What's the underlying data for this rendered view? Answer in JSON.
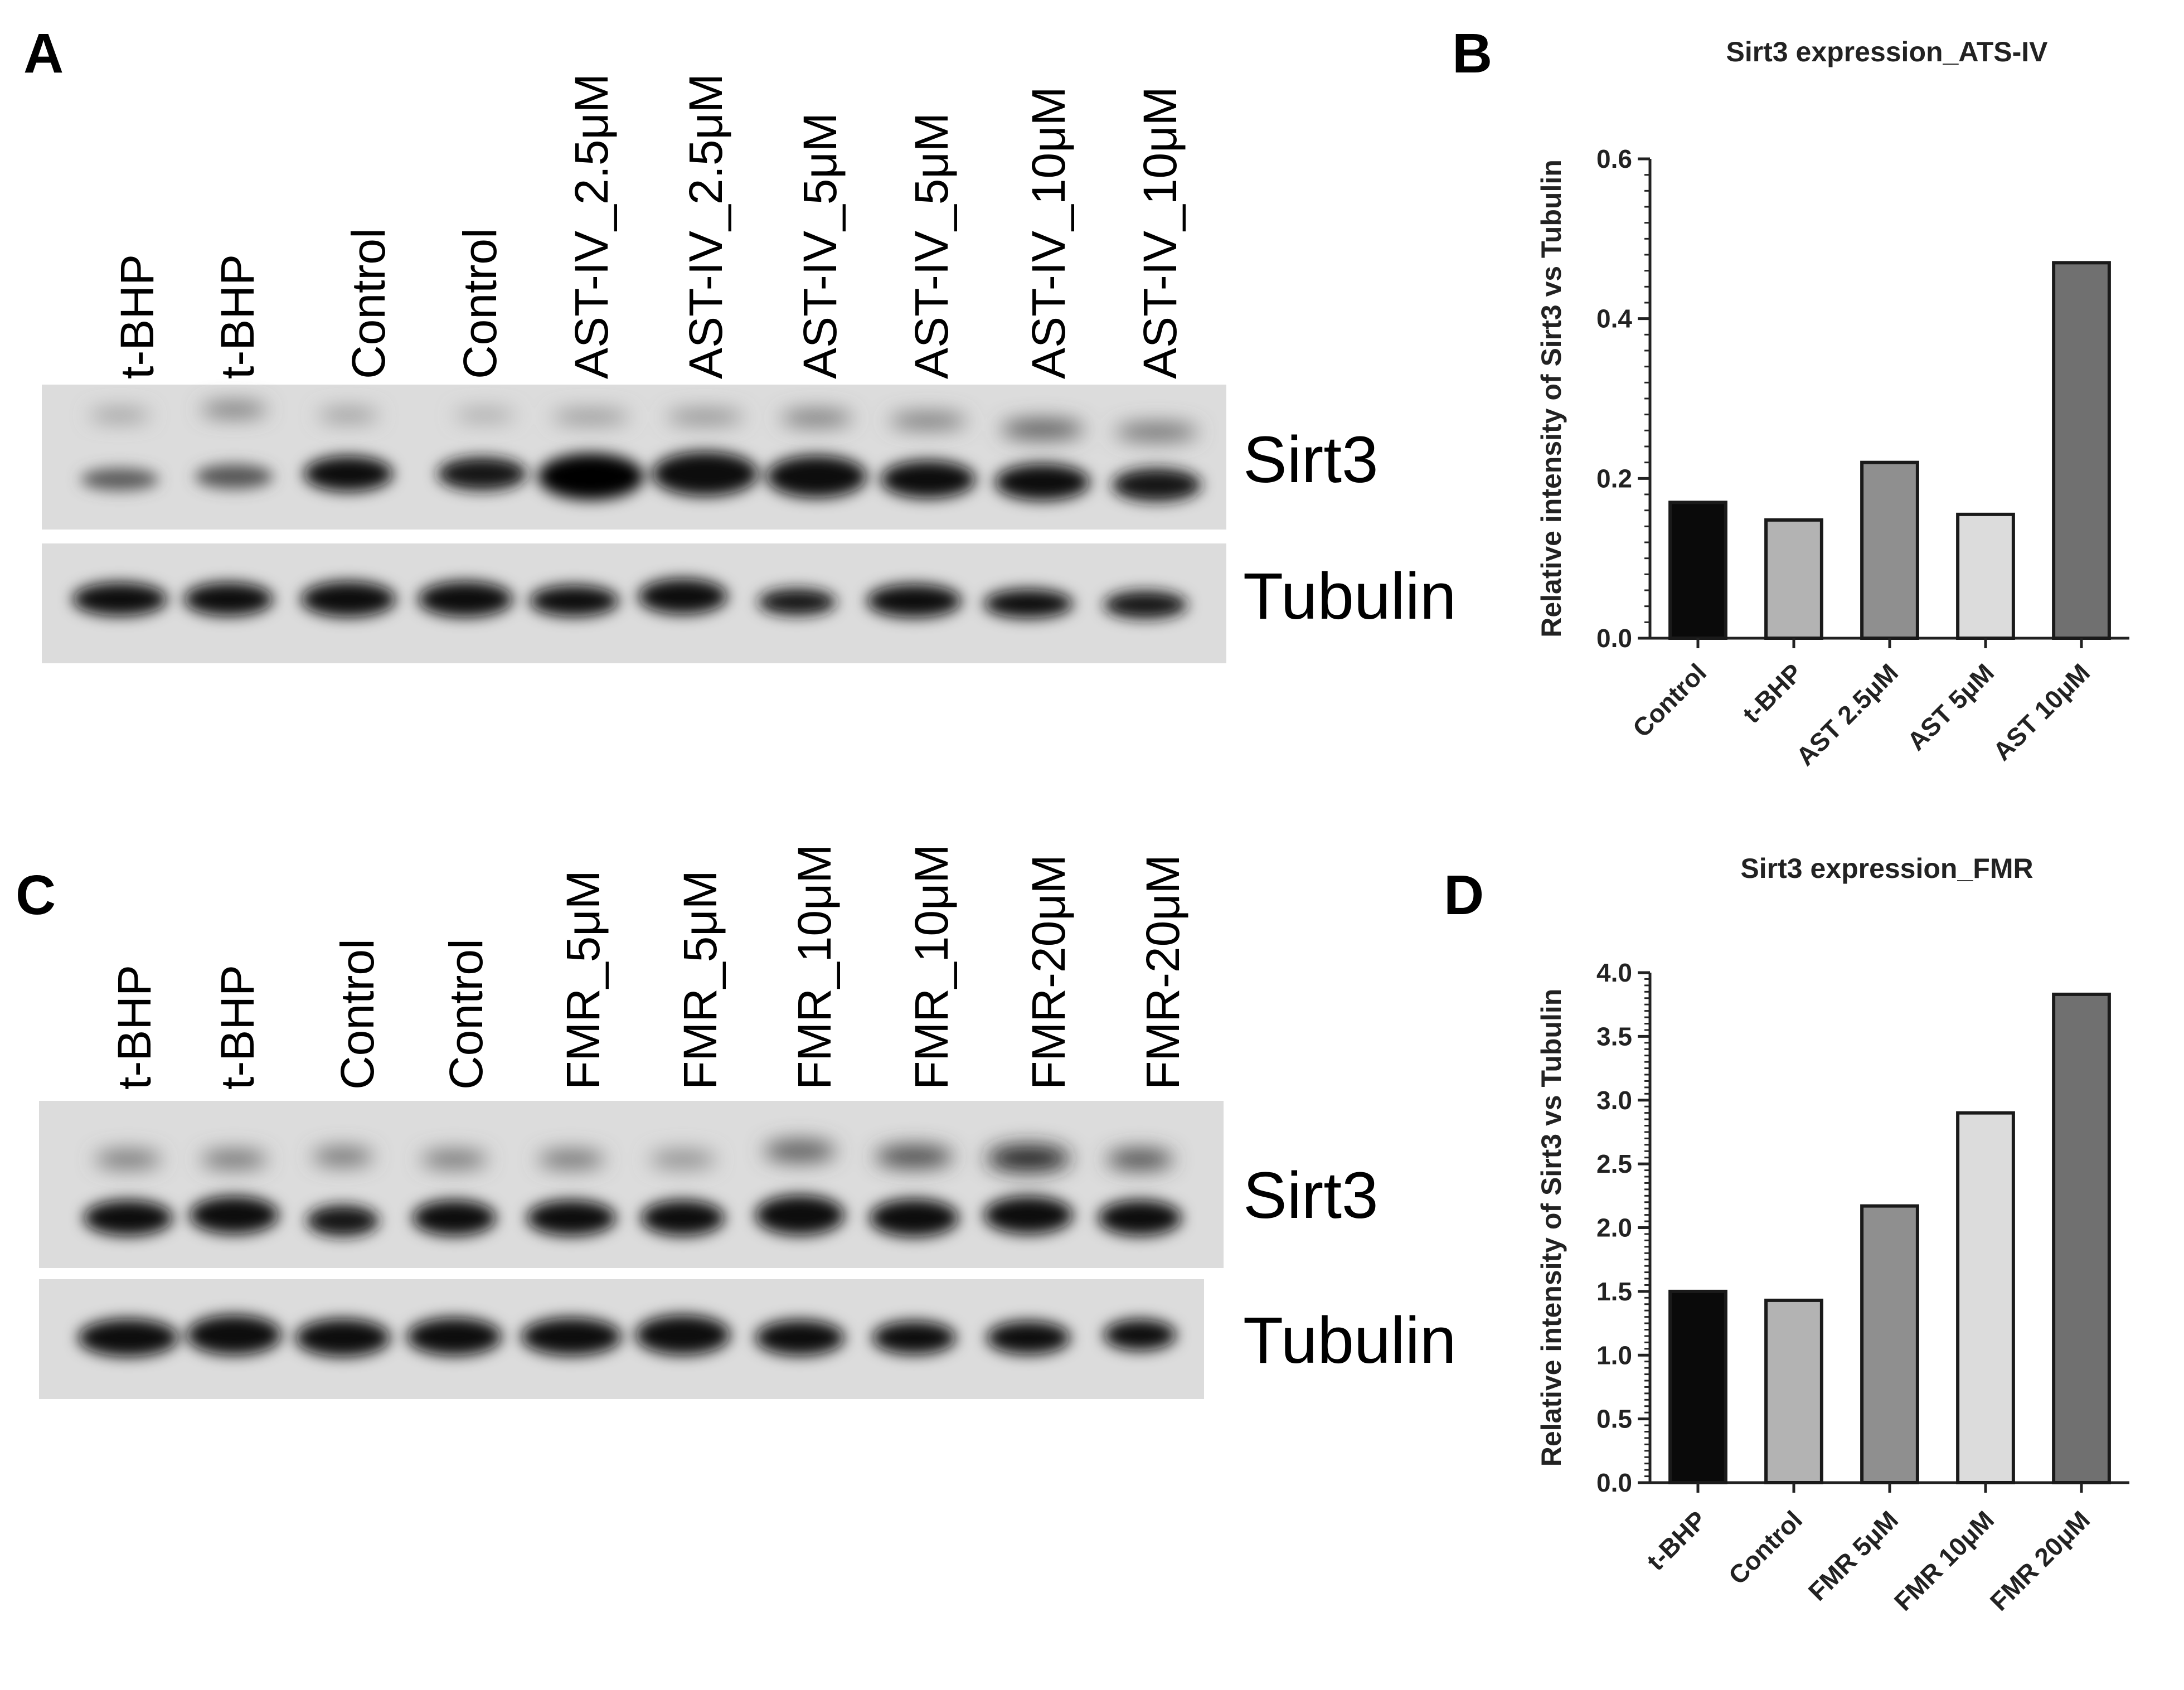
{
  "panels": {
    "A": {
      "letter": "A",
      "lanes": [
        "t-BHP",
        "t-BHP",
        "Control",
        "Control",
        "AST-IV_2.5μM",
        "AST-IV_2.5μM",
        "AST-IV_5μM",
        "AST-IV_5μM",
        "AST-IV_10μM",
        "AST-IV_10μM"
      ],
      "band_labels": [
        "Sirt3",
        "Tubulin"
      ]
    },
    "C": {
      "letter": "C",
      "lanes": [
        "t-BHP",
        "t-BHP",
        "Control",
        "Control",
        "FMR_5μM",
        "FMR_5μM",
        "FMR_10μM",
        "FMR_10μM",
        "FMR-20μM",
        "FMR-20μM"
      ],
      "band_labels": [
        "Sirt3",
        "Tubulin"
      ]
    },
    "B": {
      "letter": "B"
    },
    "D": {
      "letter": "D"
    }
  },
  "chart_data": [
    {
      "type": "bar",
      "panel": "B",
      "title": "Sirt3 expression_ATS-IV",
      "ylabel": "Relative intensity of Sirt3 vs Tubulin",
      "xlabel": "",
      "categories": [
        "Control",
        "t-BHP",
        "AST 2.5μM",
        "AST 5μM",
        "AST 10μM"
      ],
      "values": [
        0.17,
        0.148,
        0.22,
        0.155,
        0.47
      ],
      "ylim": [
        0,
        0.6
      ],
      "yticks": [
        "0.0",
        "0.2",
        "0.4",
        "0.6"
      ],
      "colors": [
        "#0a0a0a",
        "#b3b3b3",
        "#8f8f8f",
        "#dcdcdc",
        "#707070"
      ],
      "grid": false
    },
    {
      "type": "bar",
      "panel": "D",
      "title": "Sirt3 expression_FMR",
      "ylabel": "Relative intensity of Sirt3 vs Tubulin",
      "xlabel": "",
      "categories": [
        "t-BHP",
        "Control",
        "FMR 5μM",
        "FMR 10μM",
        "FMR 20μM"
      ],
      "values": [
        1.5,
        1.43,
        2.17,
        2.9,
        3.83
      ],
      "ylim": [
        0,
        4.0
      ],
      "yticks": [
        "0.0",
        "0.5",
        "1.0",
        "1.5",
        "2.0",
        "2.5",
        "3.0",
        "3.5",
        "4.0"
      ],
      "colors": [
        "#0a0a0a",
        "#b3b3b3",
        "#8f8f8f",
        "#dcdcdc",
        "#707070"
      ],
      "grid": false
    }
  ]
}
